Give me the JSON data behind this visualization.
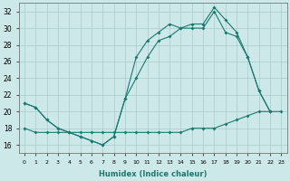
{
  "xlabel": "Humidex (Indice chaleur)",
  "xlim": [
    -0.5,
    23.5
  ],
  "ylim": [
    15,
    33
  ],
  "yticks": [
    16,
    18,
    20,
    22,
    24,
    26,
    28,
    30,
    32
  ],
  "xticks": [
    0,
    1,
    2,
    3,
    4,
    5,
    6,
    7,
    8,
    9,
    10,
    11,
    12,
    13,
    14,
    15,
    16,
    17,
    18,
    19,
    20,
    21,
    22,
    23
  ],
  "background_color": "#cce8e8",
  "grid_color": "#aacccc",
  "line_color": "#1a7a6e",
  "curves": [
    {
      "x": [
        0,
        1,
        2,
        3,
        4,
        5,
        6,
        7,
        8,
        9,
        10,
        11,
        12,
        13,
        14,
        15,
        16,
        17,
        18,
        19,
        20,
        21,
        22
      ],
      "y": [
        21.0,
        20.5,
        19.0,
        18.0,
        17.5,
        17.0,
        16.5,
        16.0,
        17.0,
        21.5,
        26.5,
        28.5,
        29.5,
        30.5,
        30.0,
        30.5,
        30.5,
        32.5,
        31.0,
        29.5,
        26.5,
        22.5,
        20.0
      ]
    },
    {
      "x": [
        0,
        1,
        2,
        3,
        4,
        5,
        6,
        7,
        8,
        9,
        10,
        11,
        12,
        13,
        14,
        15,
        16,
        17,
        18,
        19,
        20,
        21,
        22
      ],
      "y": [
        21.0,
        20.5,
        19.0,
        18.0,
        17.5,
        17.0,
        16.5,
        16.0,
        17.0,
        21.5,
        24.0,
        26.5,
        28.5,
        29.0,
        30.0,
        30.0,
        30.0,
        32.0,
        29.5,
        29.0,
        26.5,
        22.5,
        20.0
      ]
    },
    {
      "x": [
        0,
        1,
        2,
        3,
        4,
        5,
        6,
        7,
        8,
        9,
        10,
        11,
        12,
        13,
        14,
        15,
        16,
        17,
        18,
        19,
        20,
        21,
        22,
        23
      ],
      "y": [
        18.0,
        17.5,
        17.5,
        17.5,
        17.5,
        17.5,
        17.5,
        17.5,
        17.5,
        17.5,
        17.5,
        17.5,
        17.5,
        17.5,
        17.5,
        18.0,
        18.0,
        18.0,
        18.5,
        19.0,
        19.5,
        20.0,
        20.0,
        20.0
      ]
    }
  ]
}
